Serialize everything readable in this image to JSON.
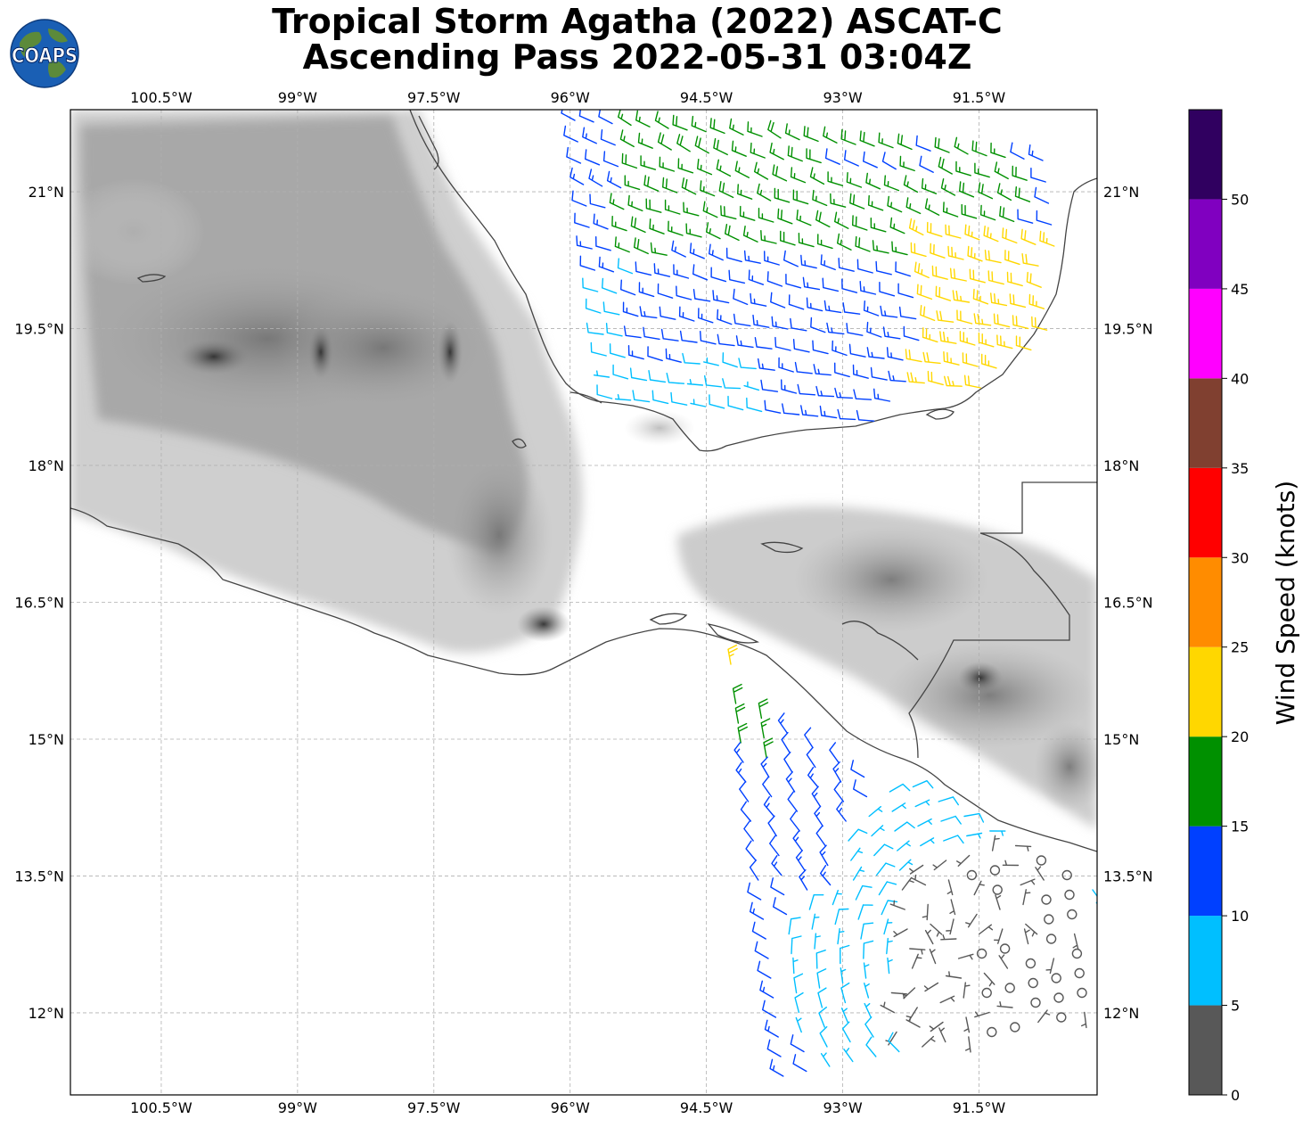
{
  "title": {
    "line1": "Tropical Storm Agatha (2022) ASCAT-C",
    "line2": "Ascending Pass 2022-05-31 03:04Z"
  },
  "logo": {
    "text": "COAPS",
    "icon": "globe-icon"
  },
  "map": {
    "lon_range": [
      -101.5,
      -90.2
    ],
    "lat_range": [
      11.1,
      21.9
    ],
    "lon_ticks": [
      "100.5°W",
      "99°W",
      "97.5°W",
      "96°W",
      "94.5°W",
      "93°W",
      "91.5°W"
    ],
    "lat_ticks": [
      "21°N",
      "19.5°N",
      "18°N",
      "16.5°N",
      "15°N",
      "13.5°N",
      "12°N"
    ],
    "gridlines": true,
    "background": "grayscale topography"
  },
  "colorbar": {
    "label": "Wind Speed (knots)",
    "tick_labels": [
      "0",
      "5",
      "10",
      "15",
      "20",
      "25",
      "30",
      "35",
      "40",
      "45",
      "50"
    ],
    "bins": [
      {
        "min": 0,
        "max": 5,
        "color": "#585858"
      },
      {
        "min": 5,
        "max": 10,
        "color": "#00bfff"
      },
      {
        "min": 10,
        "max": 15,
        "color": "#0040ff"
      },
      {
        "min": 15,
        "max": 20,
        "color": "#009000"
      },
      {
        "min": 20,
        "max": 25,
        "color": "#ffd700"
      },
      {
        "min": 25,
        "max": 30,
        "color": "#ff8c00"
      },
      {
        "min": 30,
        "max": 35,
        "color": "#ff0000"
      },
      {
        "min": 35,
        "max": 40,
        "color": "#804030"
      },
      {
        "min": 40,
        "max": 45,
        "color": "#ff00ff"
      },
      {
        "min": 45,
        "max": 50,
        "color": "#8000c0"
      },
      {
        "min": 50,
        "max": 55,
        "color": "#300060"
      }
    ]
  }
}
